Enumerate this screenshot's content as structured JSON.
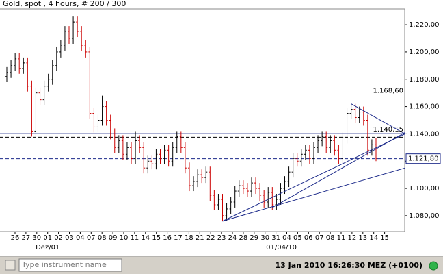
{
  "header": {
    "title": "Gold, spot , 4 hours, # 200 / 300"
  },
  "chart_data": {
    "type": "ohlc",
    "categories": [
      "26",
      "27",
      "30",
      "01",
      "02",
      "03",
      "04",
      "07",
      "08",
      "09",
      "10",
      "11",
      "14",
      "15",
      "16",
      "17",
      "18",
      "21",
      "22",
      "23",
      "24",
      "28",
      "29",
      "30",
      "31",
      "04",
      "05",
      "06",
      "07",
      "08",
      "11",
      "12",
      "13",
      "14",
      "15"
    ],
    "date_labels": [
      null,
      null,
      null,
      "Dez/01",
      null,
      null,
      null,
      null,
      null,
      null,
      null,
      null,
      null,
      null,
      null,
      null,
      null,
      null,
      null,
      null,
      null,
      null,
      null,
      null,
      "01/04/10",
      null,
      null,
      null,
      null,
      null,
      null,
      null,
      null,
      null,
      null
    ],
    "open": [
      1182,
      1185,
      1190,
      1195,
      1188,
      1192,
      1175,
      1142,
      1170,
      1165,
      1175,
      1180,
      1190,
      1200,
      1205,
      1215,
      1210,
      1222,
      1215,
      1205,
      1200,
      1155,
      1145,
      1150,
      1160,
      1150,
      1140,
      1130,
      1135,
      1125,
      1130,
      1122,
      1135,
      1130,
      1115,
      1120,
      1118,
      1125,
      1122,
      1128,
      1120,
      1130,
      1138,
      1130,
      1115,
      1102,
      1105,
      1110,
      1108,
      1112,
      1095,
      1088,
      1092,
      1080,
      1085,
      1090,
      1098,
      1102,
      1100,
      1098,
      1104,
      1100,
      1095,
      1090,
      1097,
      1088,
      1092,
      1100,
      1105,
      1112,
      1122,
      1120,
      1125,
      1128,
      1122,
      1130,
      1135,
      1138,
      1130,
      1135,
      1128,
      1122,
      1137,
      1155,
      1158,
      1152,
      1156,
      1150,
      1128,
      1132
    ],
    "high": [
      1189,
      1194,
      1199,
      1199,
      1196,
      1196,
      1179,
      1174,
      1174,
      1179,
      1184,
      1194,
      1204,
      1209,
      1219,
      1219,
      1226,
      1226,
      1219,
      1209,
      1204,
      1159,
      1154,
      1168,
      1164,
      1154,
      1144,
      1139,
      1139,
      1134,
      1134,
      1142,
      1139,
      1134,
      1124,
      1124,
      1129,
      1129,
      1132,
      1132,
      1134,
      1142,
      1142,
      1134,
      1119,
      1109,
      1114,
      1114,
      1116,
      1116,
      1099,
      1096,
      1096,
      1089,
      1094,
      1102,
      1106,
      1106,
      1104,
      1108,
      1108,
      1104,
      1099,
      1101,
      1101,
      1096,
      1104,
      1109,
      1116,
      1126,
      1126,
      1129,
      1132,
      1132,
      1134,
      1139,
      1142,
      1142,
      1139,
      1139,
      1132,
      1141,
      1159,
      1162,
      1162,
      1160,
      1160,
      1154,
      1136,
      1137
    ],
    "low": [
      1178,
      1181,
      1186,
      1184,
      1184,
      1171,
      1138,
      1138,
      1161,
      1161,
      1171,
      1176,
      1186,
      1196,
      1201,
      1206,
      1206,
      1211,
      1201,
      1196,
      1151,
      1141,
      1141,
      1146,
      1146,
      1136,
      1126,
      1126,
      1121,
      1121,
      1118,
      1118,
      1126,
      1111,
      1111,
      1114,
      1114,
      1118,
      1118,
      1116,
      1116,
      1126,
      1126,
      1111,
      1098,
      1098,
      1101,
      1104,
      1104,
      1091,
      1084,
      1084,
      1076,
      1076,
      1081,
      1086,
      1094,
      1096,
      1094,
      1094,
      1096,
      1091,
      1086,
      1086,
      1084,
      1084,
      1088,
      1096,
      1101,
      1108,
      1116,
      1116,
      1121,
      1118,
      1118,
      1126,
      1131,
      1126,
      1126,
      1124,
      1118,
      1118,
      1133,
      1151,
      1148,
      1148,
      1146,
      1124,
      1124,
      1120
    ],
    "close": [
      1185,
      1190,
      1195,
      1188,
      1192,
      1175,
      1142,
      1170,
      1165,
      1175,
      1180,
      1190,
      1200,
      1205,
      1215,
      1210,
      1222,
      1215,
      1205,
      1200,
      1155,
      1145,
      1150,
      1160,
      1150,
      1140,
      1130,
      1135,
      1125,
      1130,
      1122,
      1135,
      1130,
      1115,
      1120,
      1118,
      1125,
      1122,
      1128,
      1120,
      1130,
      1138,
      1130,
      1115,
      1102,
      1105,
      1110,
      1108,
      1112,
      1095,
      1088,
      1092,
      1080,
      1085,
      1090,
      1098,
      1102,
      1100,
      1098,
      1104,
      1100,
      1095,
      1090,
      1097,
      1088,
      1092,
      1100,
      1105,
      1112,
      1122,
      1120,
      1125,
      1128,
      1122,
      1130,
      1135,
      1138,
      1130,
      1135,
      1128,
      1122,
      1137,
      1155,
      1158,
      1152,
      1156,
      1150,
      1128,
      1132,
      1122
    ],
    "up_color": "#000000",
    "down_color": "#cc0000",
    "line_color": "#1c2a8a",
    "ylim": [
      1068.4,
      1231.6
    ],
    "yticks": [
      {
        "value": 1080,
        "label": "1.080,00"
      },
      {
        "value": 1100,
        "label": "1.100,00"
      },
      {
        "value": 1120,
        "label": "1.120,00"
      },
      {
        "value": 1140,
        "label": "1.140,00"
      },
      {
        "value": 1160,
        "label": "1.160,00"
      },
      {
        "value": 1180,
        "label": "1.180,00"
      },
      {
        "value": 1200,
        "label": "1.200,00"
      },
      {
        "value": 1220,
        "label": "1.220,00"
      }
    ],
    "hlines": [
      {
        "value": 1168.6,
        "label": "1.168,60",
        "style": "solid"
      },
      {
        "value": 1140.15,
        "label": "1.140,15",
        "style": "solid"
      },
      {
        "value": 1137.5,
        "style": "dashed",
        "color": "#000000"
      },
      {
        "value": 1121.8,
        "label": "1.121,80",
        "style": "dashed",
        "axis_marker": true
      }
    ],
    "trendlines": [
      {
        "from": [
          52,
          1076
        ],
        "to": [
          96,
          1140
        ]
      },
      {
        "from": [
          52,
          1076
        ],
        "to": [
          96,
          1115
        ]
      },
      {
        "from": [
          64,
          1086
        ],
        "to": [
          96,
          1141
        ]
      },
      {
        "from": [
          83,
          1162
        ],
        "to": [
          96,
          1140
        ]
      }
    ]
  },
  "status_bar": {
    "search_placeholder": "Type instrument name",
    "datetime": "13 Jan 2010 16:26:30 MEZ (+0100)"
  }
}
